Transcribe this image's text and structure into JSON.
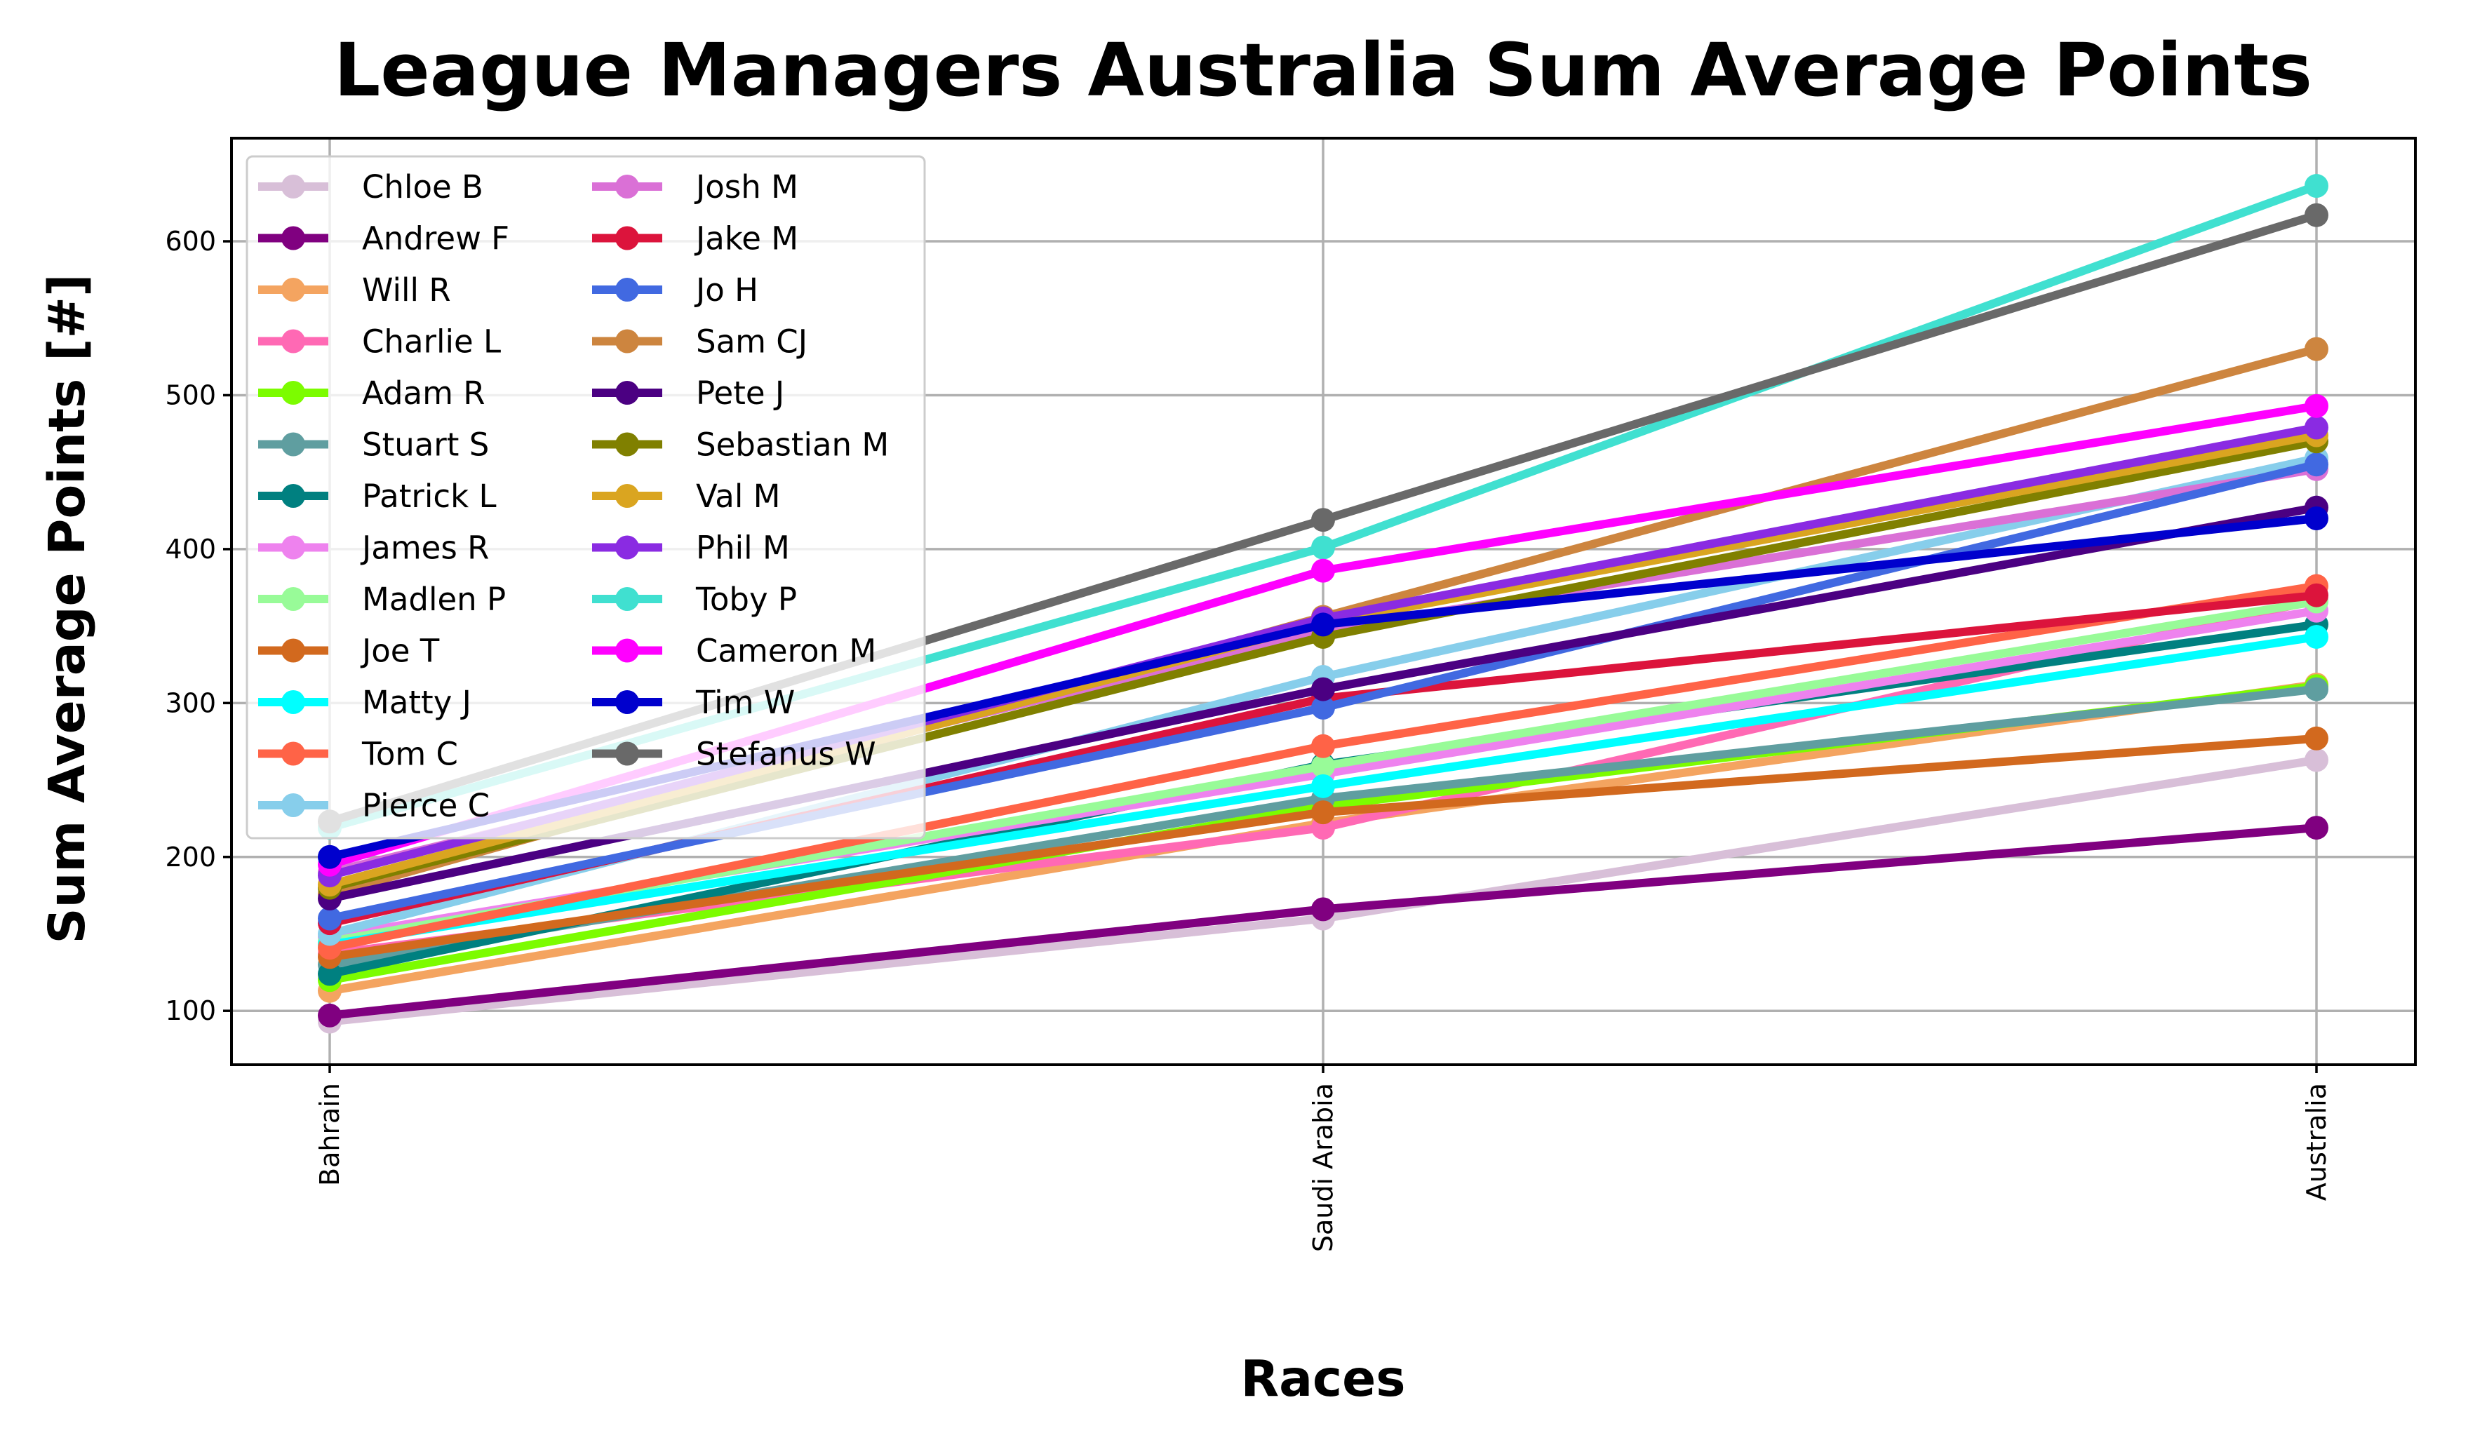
{
  "chart_data": {
    "type": "line",
    "title": "League Managers Australia Sum Average Points",
    "xlabel": "Races",
    "ylabel": "Sum Average Points [#]",
    "categories": [
      "Bahrain",
      "Saudi Arabia",
      "Australia"
    ],
    "yticks": [
      100,
      200,
      300,
      400,
      500,
      600
    ],
    "ylim": [
      65,
      667
    ],
    "grid": true,
    "legend_position": "upper-left",
    "legend_columns": 2,
    "series": [
      {
        "name": "Chloe B",
        "color": "#D8BFD8",
        "values": [
          93,
          160,
          263
        ]
      },
      {
        "name": "Andrew F",
        "color": "#800080",
        "values": [
          97,
          166,
          219
        ]
      },
      {
        "name": "Will R",
        "color": "#F4A460",
        "values": [
          113,
          222,
          312
        ]
      },
      {
        "name": "Charlie L",
        "color": "#FF69B4",
        "values": [
          137,
          219,
          367
        ]
      },
      {
        "name": "Adam R",
        "color": "#7CFC00",
        "values": [
          120,
          233,
          311
        ]
      },
      {
        "name": "Stuart S",
        "color": "#5F9EA0",
        "values": [
          130,
          238,
          309
        ]
      },
      {
        "name": "Patrick L",
        "color": "#008080",
        "values": [
          124,
          260,
          351
        ]
      },
      {
        "name": "James R",
        "color": "#EE82EE",
        "values": [
          148,
          254,
          360
        ]
      },
      {
        "name": "Madlen P",
        "color": "#98FB98",
        "values": [
          145,
          259,
          366
        ]
      },
      {
        "name": "Joe T",
        "color": "#D2691E",
        "values": [
          135,
          229,
          277
        ]
      },
      {
        "name": "Matty J",
        "color": "#00FFFF",
        "values": [
          143,
          246,
          343
        ]
      },
      {
        "name": "Tom C",
        "color": "#FF6347",
        "values": [
          141,
          272,
          376
        ]
      },
      {
        "name": "Pierce C",
        "color": "#87CEEB",
        "values": [
          150,
          317,
          459
        ]
      },
      {
        "name": "Josh M",
        "color": "#DA70D6",
        "values": [
          190,
          347,
          452
        ]
      },
      {
        "name": "Jake M",
        "color": "#DC143C",
        "values": [
          157,
          303,
          370
        ]
      },
      {
        "name": "Jo H",
        "color": "#4169E1",
        "values": [
          160,
          297,
          455
        ]
      },
      {
        "name": "Sam CJ",
        "color": "#CD853F",
        "values": [
          176,
          356,
          530
        ]
      },
      {
        "name": "Pete J",
        "color": "#4B0082",
        "values": [
          173,
          309,
          427
        ]
      },
      {
        "name": "Sebastian M",
        "color": "#808000",
        "values": [
          180,
          343,
          470
        ]
      },
      {
        "name": "Val M",
        "color": "#DAA520",
        "values": [
          182,
          352,
          474
        ]
      },
      {
        "name": "Phil M",
        "color": "#8A2BE2",
        "values": [
          188,
          355,
          479
        ]
      },
      {
        "name": "Toby P",
        "color": "#40E0D0",
        "values": [
          219,
          401,
          636
        ]
      },
      {
        "name": "Cameron M",
        "color": "#FF00FF",
        "values": [
          195,
          386,
          493
        ]
      },
      {
        "name": "Tim W",
        "color": "#0000CD",
        "values": [
          200,
          351,
          420
        ]
      },
      {
        "name": "Stefanus W",
        "color": "#696969",
        "values": [
          223,
          419,
          617
        ]
      }
    ]
  }
}
